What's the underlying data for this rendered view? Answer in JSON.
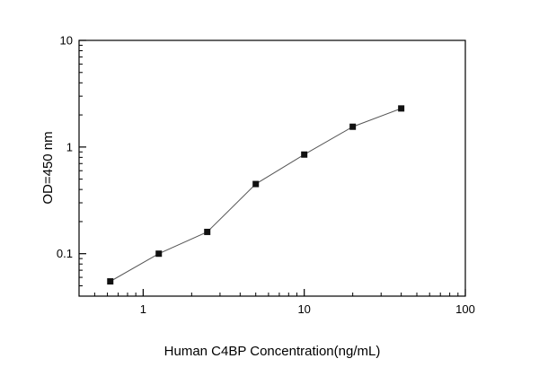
{
  "chart_data": {
    "type": "line",
    "title": "",
    "xlabel": "Human C4BP Concentration(ng/mL)",
    "ylabel": "OD=450 nm",
    "x": [
      0.625,
      1.25,
      2.5,
      5,
      10,
      20,
      40
    ],
    "y": [
      0.055,
      0.1,
      0.16,
      0.45,
      0.85,
      1.55,
      2.3
    ],
    "xscale": "log",
    "yscale": "log",
    "xlim": [
      0.4,
      100
    ],
    "ylim": [
      0.04,
      10
    ],
    "x_major_ticks": [
      1,
      10,
      100
    ],
    "x_tick_labels": [
      "1",
      "10",
      "100"
    ],
    "y_major_ticks": [
      0.1,
      1,
      10
    ],
    "y_tick_labels": [
      "0.1",
      "1",
      "10"
    ],
    "legend": "none",
    "grid": "off",
    "marker": "square",
    "colors": {
      "line": "#555555",
      "marker": "#111111",
      "frame": "#000000",
      "background": "#ffffff"
    }
  }
}
